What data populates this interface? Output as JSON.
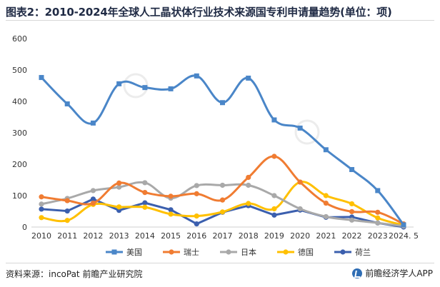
{
  "title": "图表2：2010-2024年全球人工晶状体行业技术来源国专利申请量趋势(单位：项)",
  "source": "资料来源：incoPat 前瞻产业研究院",
  "brand": "前瞻经济学人APP",
  "logo_icon": "qianzhan-logo-icon",
  "chart_data": {
    "type": "line",
    "ylim": [
      0,
      600
    ],
    "yticks": [
      "0",
      "100",
      "200",
      "300",
      "400",
      "500",
      "600"
    ],
    "categories": [
      "2010",
      "2011",
      "2012",
      "2013",
      "2014",
      "2015",
      "2016",
      "2017",
      "2018",
      "2019",
      "2020",
      "2021",
      "2022",
      "2023",
      "2024. 5"
    ],
    "grid": false,
    "legend_position": "bottom",
    "series": [
      {
        "name": "美国",
        "color": "#4a86c8",
        "marker": "square",
        "smooth": true,
        "values": [
          476,
          392,
          331,
          456,
          444,
          440,
          481,
          396,
          474,
          341,
          315,
          246,
          183,
          116,
          7
        ]
      },
      {
        "name": "瑞士",
        "color": "#f07c32",
        "marker": "circle",
        "smooth": true,
        "values": [
          96,
          84,
          76,
          140,
          110,
          98,
          106,
          86,
          158,
          225,
          143,
          76,
          49,
          47,
          10
        ]
      },
      {
        "name": "日本",
        "color": "#a9a9a9",
        "marker": "circle",
        "smooth": true,
        "values": [
          73,
          91,
          116,
          127,
          141,
          92,
          132,
          133,
          133,
          100,
          58,
          33,
          22,
          13,
          3
        ]
      },
      {
        "name": "德国",
        "color": "#ffc000",
        "marker": "circle",
        "smooth": true,
        "values": [
          30,
          21,
          72,
          64,
          63,
          41,
          35,
          48,
          75,
          58,
          143,
          100,
          74,
          29,
          6
        ]
      },
      {
        "name": "荷兰",
        "color": "#3b5fae",
        "marker": "circle",
        "smooth": false,
        "values": [
          57,
          51,
          89,
          53,
          77,
          55,
          10,
          47,
          68,
          38,
          54,
          31,
          32,
          13,
          0
        ]
      }
    ]
  }
}
